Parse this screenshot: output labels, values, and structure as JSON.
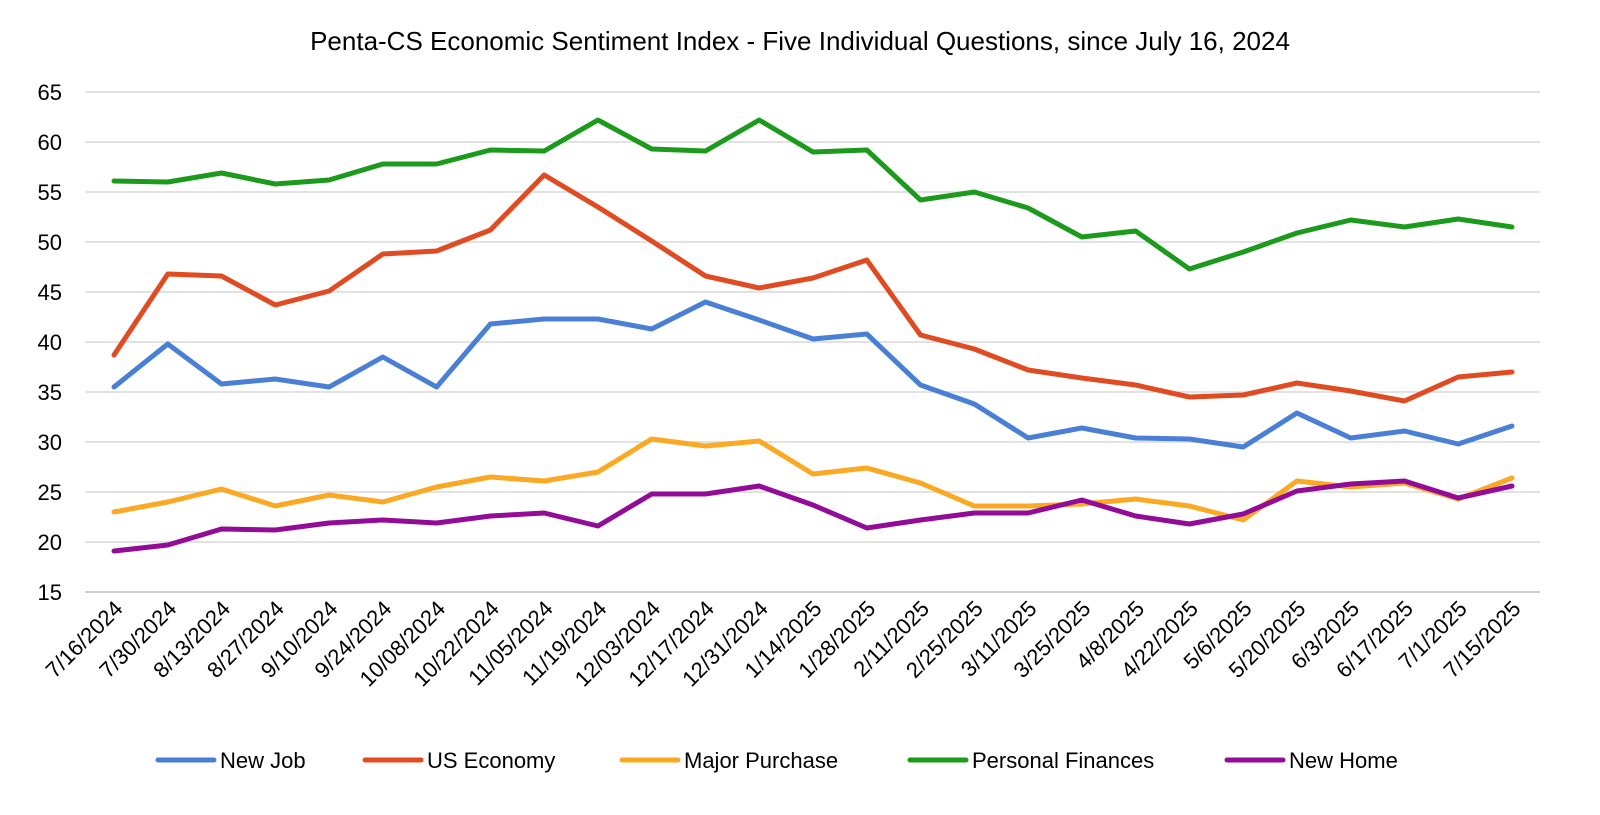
{
  "chart_data": {
    "type": "line",
    "title": "Penta-CS Economic Sentiment Index - Five Individual Questions, since July 16, 2024",
    "xlabel": "",
    "ylabel": "",
    "ylim": [
      15,
      65
    ],
    "yticks": [
      "15",
      "20",
      "25",
      "30",
      "35",
      "40",
      "45",
      "50",
      "55",
      "60",
      "65"
    ],
    "grid": true,
    "legend_position": "bottom",
    "categories": [
      "7/16/2024",
      "7/30/2024",
      "8/13/2024",
      "8/27/2024",
      "9/10/2024",
      "9/24/2024",
      "10/08/2024",
      "10/22/2024",
      "11/05/2024",
      "11/19/2024",
      "12/03/2024",
      "12/17/2024",
      "12/31/2024",
      "1/14/2025",
      "1/28/2025",
      "2/11/2025",
      "2/25/2025",
      "3/11/2025",
      "3/25/2025",
      "4/8/2025",
      "4/22/2025",
      "5/6/2025",
      "5/20/2025",
      "6/3/2025",
      "6/17/2025",
      "7/1/2025",
      "7/15/2025"
    ],
    "series": [
      {
        "name": "New Job",
        "color": "#4a7fd6",
        "values": [
          35.5,
          39.8,
          35.8,
          36.3,
          35.5,
          38.5,
          35.5,
          41.8,
          42.3,
          42.3,
          41.3,
          44.0,
          42.2,
          40.3,
          40.8,
          35.7,
          33.8,
          30.4,
          31.4,
          30.4,
          30.3,
          29.5,
          32.9,
          30.4,
          31.1,
          29.8,
          31.6
        ]
      },
      {
        "name": "US Economy",
        "color": "#e04b22",
        "values": [
          38.7,
          46.8,
          46.6,
          43.7,
          45.1,
          48.8,
          49.1,
          51.2,
          56.7,
          53.5,
          50.1,
          46.6,
          45.4,
          46.4,
          48.2,
          40.7,
          39.3,
          37.2,
          36.4,
          35.7,
          34.5,
          34.7,
          35.9,
          35.1,
          34.1,
          36.5,
          37.0
        ]
      },
      {
        "name": "Major Purchase",
        "color": "#fba822",
        "values": [
          23.0,
          24.0,
          25.3,
          23.6,
          24.7,
          24.0,
          25.5,
          26.5,
          26.1,
          27.0,
          30.3,
          29.6,
          30.1,
          26.8,
          27.4,
          25.9,
          23.6,
          23.6,
          23.8,
          24.3,
          23.6,
          22.2,
          26.1,
          25.5,
          25.9,
          24.3,
          26.4
        ]
      },
      {
        "name": "Personal Finances",
        "color": "#1c9a1c",
        "values": [
          56.1,
          56.0,
          56.9,
          55.8,
          56.2,
          57.8,
          57.8,
          59.2,
          59.1,
          62.2,
          59.3,
          59.1,
          62.2,
          59.0,
          59.2,
          54.2,
          55.0,
          53.4,
          50.5,
          51.1,
          47.3,
          49.0,
          50.9,
          52.2,
          51.5,
          52.3,
          51.5
        ]
      },
      {
        "name": "New Home",
        "color": "#920c98",
        "values": [
          19.1,
          19.7,
          21.3,
          21.2,
          21.9,
          22.2,
          21.9,
          22.6,
          22.9,
          21.6,
          24.8,
          24.8,
          25.6,
          23.7,
          21.4,
          22.2,
          22.9,
          22.9,
          24.2,
          22.6,
          21.8,
          22.8,
          25.1,
          25.8,
          26.1,
          24.4,
          25.6
        ]
      }
    ]
  }
}
